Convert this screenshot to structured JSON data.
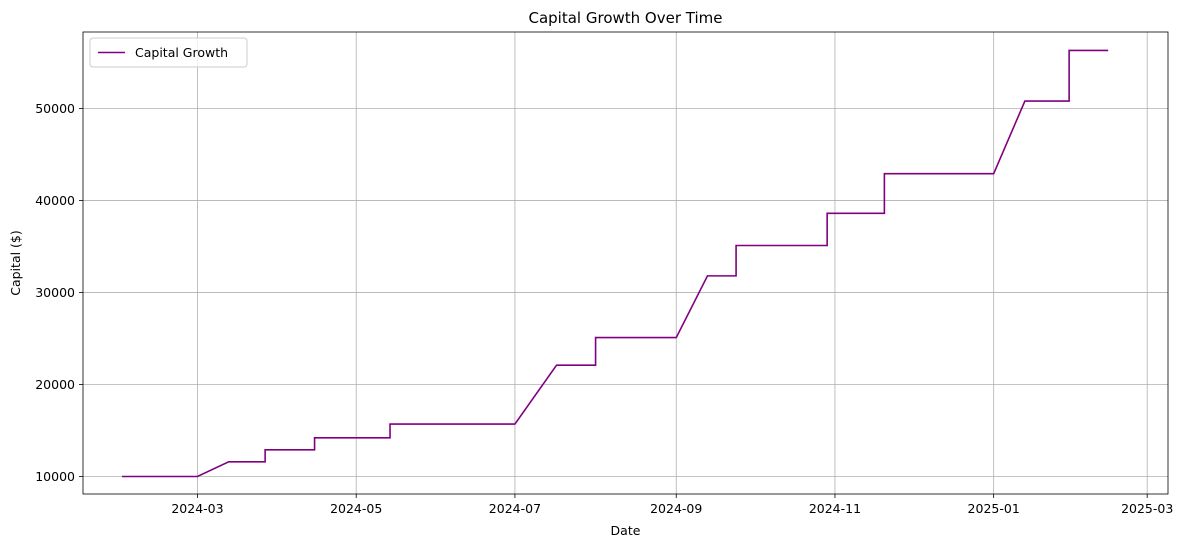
{
  "chart_data": {
    "type": "line",
    "title": "Capital Growth Over Time",
    "xlabel": "Date",
    "ylabel": "Capital ($)",
    "xlim": [
      "2024-01-17",
      "2025-03-09"
    ],
    "ylim": [
      8100,
      58300
    ],
    "x_ticks": [
      "2024-03",
      "2024-05",
      "2024-07",
      "2024-09",
      "2024-11",
      "2025-01",
      "2025-03"
    ],
    "y_ticks": [
      10000,
      20000,
      30000,
      40000,
      50000
    ],
    "grid": true,
    "legend_position": "top-left",
    "series": [
      {
        "name": "Capital Growth",
        "color": "#800080",
        "points": [
          [
            "2024-02-01",
            10000
          ],
          [
            "2024-03-01",
            10000
          ],
          [
            "2024-03-13",
            11600
          ],
          [
            "2024-03-27",
            11600
          ],
          [
            "2024-03-27",
            12900
          ],
          [
            "2024-04-15",
            12900
          ],
          [
            "2024-04-15",
            14200
          ],
          [
            "2024-05-14",
            14200
          ],
          [
            "2024-05-14",
            15700
          ],
          [
            "2024-07-01",
            15700
          ],
          [
            "2024-07-17",
            22100
          ],
          [
            "2024-08-01",
            22100
          ],
          [
            "2024-08-01",
            25100
          ],
          [
            "2024-09-01",
            25100
          ],
          [
            "2024-09-13",
            31800
          ],
          [
            "2024-09-24",
            31800
          ],
          [
            "2024-09-24",
            35100
          ],
          [
            "2024-10-29",
            35100
          ],
          [
            "2024-10-29",
            38600
          ],
          [
            "2024-11-20",
            38600
          ],
          [
            "2024-11-20",
            42900
          ],
          [
            "2025-01-01",
            42900
          ],
          [
            "2025-01-13",
            50800
          ],
          [
            "2025-01-30",
            50800
          ],
          [
            "2025-01-30",
            56300
          ],
          [
            "2025-02-14",
            56300
          ]
        ]
      }
    ]
  }
}
